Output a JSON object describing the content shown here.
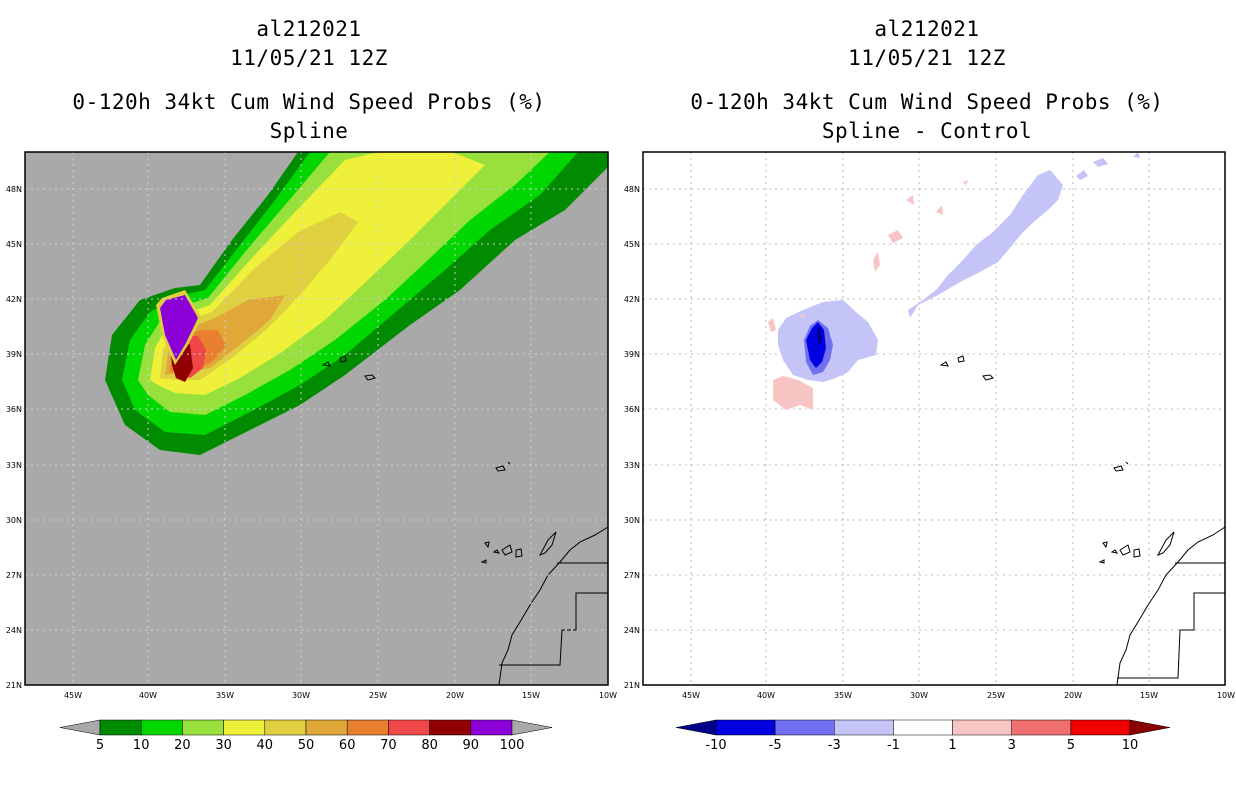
{
  "panels": [
    {
      "id": "left",
      "title_lines": [
        "al212021",
        "11/05/21 12Z",
        "0-120h 34kt Cum Wind Speed Probs (%)",
        "Spline"
      ],
      "background": "#a9a9a9",
      "lat_labels": [
        "48N",
        "45N",
        "42N",
        "39N",
        "36N",
        "33N",
        "30N",
        "27N",
        "24N",
        "21N"
      ],
      "lon_labels": [
        "45W",
        "40W",
        "35W",
        "30W",
        "25W",
        "20W",
        "15W",
        "10W"
      ],
      "colorbar": {
        "colors": [
          "#008b00",
          "#00d700",
          "#98e03c",
          "#eef03a",
          "#e0d040",
          "#e0a838",
          "#e88030",
          "#f04848",
          "#900000",
          "#8c00d8"
        ],
        "labels": [
          "5",
          "10",
          "20",
          "30",
          "40",
          "50",
          "60",
          "70",
          "80",
          "90",
          "100"
        ],
        "left_tri": "#a9a9a9",
        "right_tri": "#a9a9a9"
      }
    },
    {
      "id": "right",
      "title_lines": [
        "al212021",
        "11/05/21 12Z",
        "0-120h 34kt Cum Wind Speed Probs (%)",
        "Spline - Control"
      ],
      "background": "#ffffff",
      "lat_labels": [
        "48N",
        "45N",
        "42N",
        "39N",
        "36N",
        "33N",
        "30N",
        "27N",
        "24N",
        "21N"
      ],
      "lon_labels": [
        "45W",
        "40W",
        "35W",
        "30W",
        "25W",
        "20W",
        "15W",
        "10W"
      ],
      "colorbar": {
        "colors": [
          "#0000e0",
          "#7070f0",
          "#c4c4f8",
          "#ffffff",
          "#f8c4c4",
          "#f07070",
          "#f00000"
        ],
        "labels": [
          "-10",
          "-5",
          "-3",
          "-1",
          "1",
          "3",
          "5",
          "10"
        ],
        "left_tri": "#000088",
        "right_tri": "#880000"
      }
    }
  ]
}
